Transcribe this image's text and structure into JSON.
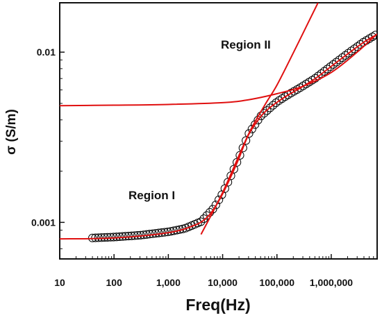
{
  "chart_data": {
    "type": "scatter",
    "title": "",
    "xlabel": "Freq(Hz)",
    "ylabel": "σ (S/m)",
    "x_scale": "log",
    "y_scale": "log",
    "xlim": [
      10,
      7000000
    ],
    "ylim": [
      0.00061,
      0.0195
    ],
    "x_ticks": [
      10,
      100,
      1000,
      10000,
      100000,
      1000000
    ],
    "x_tick_labels": [
      "10",
      "100",
      "1,000",
      "10,000",
      "100,000",
      "1,000,000"
    ],
    "y_ticks": [
      0.001,
      0.01
    ],
    "y_tick_labels": [
      "0.001",
      "0.01"
    ],
    "grid": false,
    "legend": "none",
    "marker_color": "#000000",
    "fit_color": "#e01010",
    "annotations": [
      "Region I",
      "Region II"
    ],
    "series": [
      {
        "type": "scatter",
        "marker": "open-circle",
        "points": [
          [
            40,
            0.00081
          ],
          [
            100,
            0.00082
          ],
          [
            300,
            0.00084
          ],
          [
            1000,
            0.00088
          ],
          [
            2000,
            0.00092
          ],
          [
            4000,
            0.00101
          ],
          [
            7000,
            0.00122
          ],
          [
            10000,
            0.00148
          ],
          [
            15000,
            0.00195
          ],
          [
            20000,
            0.0024
          ],
          [
            30000,
            0.0033
          ],
          [
            50000,
            0.0042
          ],
          [
            80000,
            0.0048
          ],
          [
            100000,
            0.0051
          ],
          [
            150000,
            0.00555
          ],
          [
            250000,
            0.0061
          ],
          [
            500000,
            0.007
          ],
          [
            1000000,
            0.0083
          ],
          [
            2000000,
            0.0098
          ],
          [
            4000000,
            0.0115
          ],
          [
            6500000,
            0.0126
          ]
        ]
      },
      {
        "type": "line",
        "points": [
          [
            10,
            0.0008
          ],
          [
            100,
            0.00081
          ],
          [
            1000,
            0.00087
          ],
          [
            3000,
            0.00096
          ],
          [
            5000,
            0.00106
          ],
          [
            7000,
            0.00121
          ],
          [
            10000,
            0.00147
          ],
          [
            15000,
            0.00193
          ],
          [
            20000,
            0.00238
          ],
          [
            30000,
            0.00327
          ],
          [
            50000,
            0.00417
          ],
          [
            70000,
            0.00465
          ],
          [
            100000,
            0.00507
          ],
          [
            150000,
            0.00553
          ],
          [
            250000,
            0.00607
          ],
          [
            500000,
            0.00697
          ],
          [
            1000000,
            0.00825
          ],
          [
            2000000,
            0.00975
          ],
          [
            4000000,
            0.01145
          ],
          [
            6500000,
            0.01255
          ]
        ]
      },
      {
        "type": "line",
        "points": [
          [
            10,
            0.00485
          ],
          [
            100,
            0.00488
          ],
          [
            1000,
            0.00493
          ],
          [
            10000,
            0.00505
          ],
          [
            30000,
            0.00525
          ],
          [
            100000,
            0.0057
          ],
          [
            300000,
            0.0063
          ],
          [
            1000000,
            0.0076
          ],
          [
            3000000,
            0.01
          ],
          [
            7000000,
            0.0128
          ]
        ]
      },
      {
        "type": "line",
        "points": [
          [
            4000,
            0.00085
          ],
          [
            10000,
            0.0015
          ],
          [
            30000,
            0.0033
          ],
          [
            60000,
            0.0049
          ],
          [
            100000,
            0.0064
          ],
          [
            200000,
            0.0099
          ],
          [
            400000,
            0.0155
          ],
          [
            570000,
            0.0195
          ]
        ]
      }
    ]
  }
}
